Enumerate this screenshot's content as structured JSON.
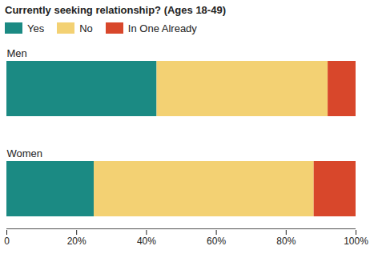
{
  "chart_data": {
    "type": "bar",
    "title": "Currently seeking relationship? (Ages 18-49)",
    "orientation": "horizontal",
    "stacked": true,
    "grid": false,
    "legend": "top-left",
    "categories": [
      "Men",
      "Women"
    ],
    "series": [
      {
        "name": "Yes",
        "color": "#1b8a83",
        "values": [
          43,
          25
        ]
      },
      {
        "name": "No",
        "color": "#f3d173",
        "values": [
          49,
          63
        ]
      },
      {
        "name": "In One Already",
        "color": "#d8472b",
        "values": [
          8,
          12
        ]
      }
    ],
    "xlim": [
      0,
      100
    ],
    "xticks": [
      0,
      {
        "value": 20,
        "label": "20%"
      },
      {
        "value": 40,
        "label": "40%"
      },
      {
        "value": 60,
        "label": "60%"
      },
      {
        "value": 80,
        "label": "80%"
      },
      {
        "value": 100,
        "label": "100%"
      }
    ]
  }
}
